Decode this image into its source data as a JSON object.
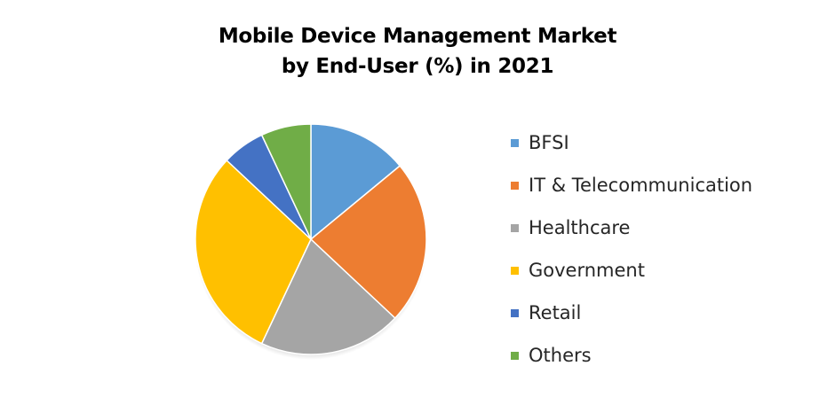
{
  "chart_data": {
    "type": "pie",
    "title": "Mobile Device Management Market",
    "subtitle": "by End-User (%) in 2021",
    "categories": [
      "BFSI",
      "IT & Telecommunication",
      "Healthcare",
      "Government",
      "Retail",
      "Others"
    ],
    "values": [
      14,
      23,
      20,
      30,
      6,
      7
    ],
    "colors": [
      "#5b9bd5",
      "#ed7d31",
      "#a5a5a5",
      "#ffc000",
      "#4472c4",
      "#70ad47"
    ],
    "legend_position": "right",
    "start_angle_deg": 0,
    "direction": "clockwise"
  }
}
